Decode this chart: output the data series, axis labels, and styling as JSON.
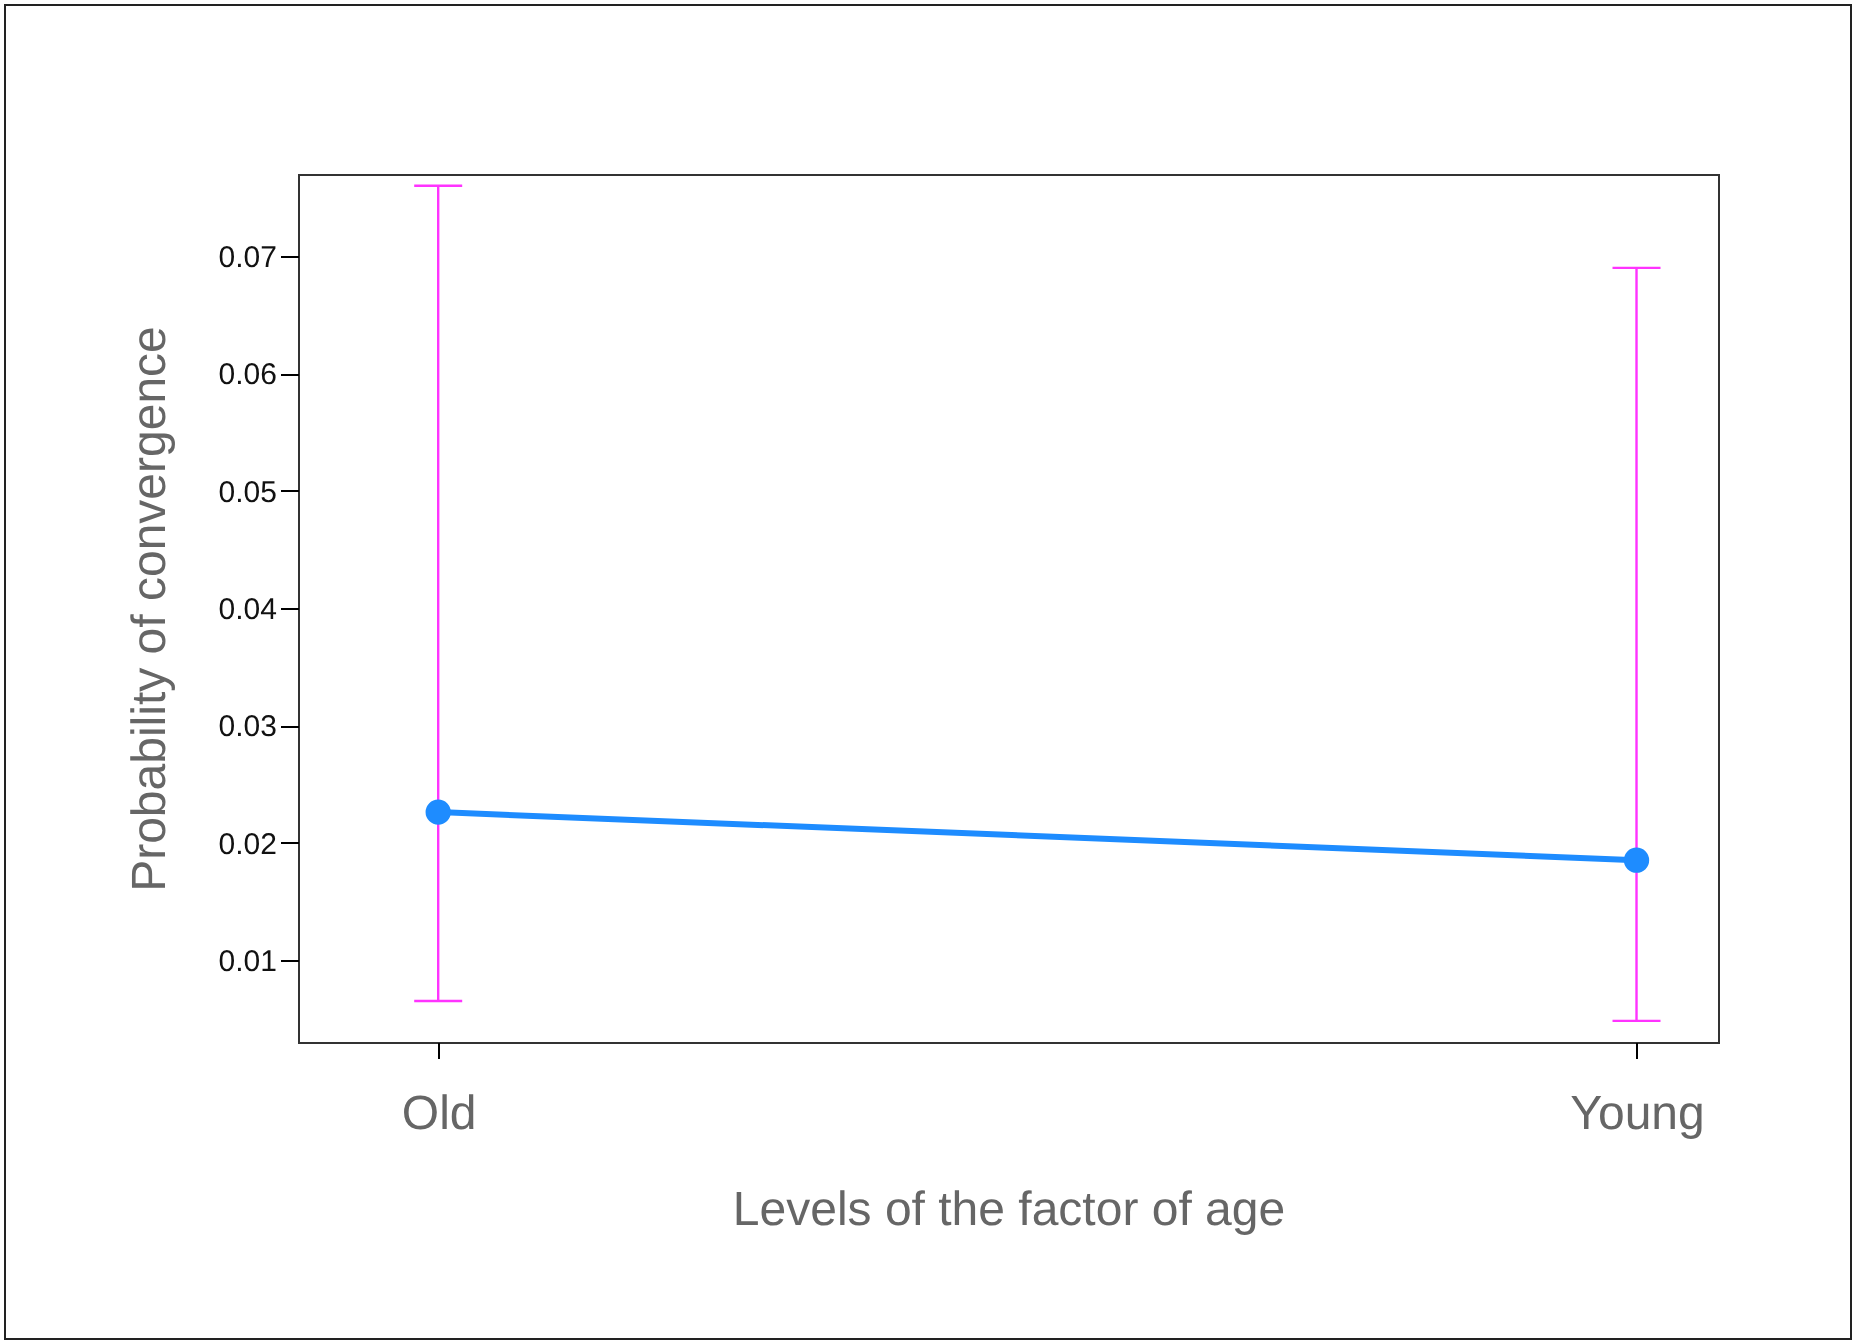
{
  "chart_data": {
    "type": "line",
    "xlabel": "Levels of the factor of age",
    "ylabel": "Probability of convergence",
    "categories": [
      "Old",
      "Young"
    ],
    "series": [
      {
        "color": "#1e8cff",
        "values": [
          0.0226,
          0.0185
        ],
        "errors": [
          [
            0.0065,
            0.076
          ],
          [
            0.0048,
            0.069
          ]
        ]
      }
    ],
    "ylim": [
      0.003,
      0.077
    ],
    "yticks": [
      0.01,
      0.02,
      0.03,
      0.04,
      0.05,
      0.06,
      0.07
    ],
    "grid": false,
    "legend": false,
    "marker": "circle",
    "line_style": "solid"
  }
}
